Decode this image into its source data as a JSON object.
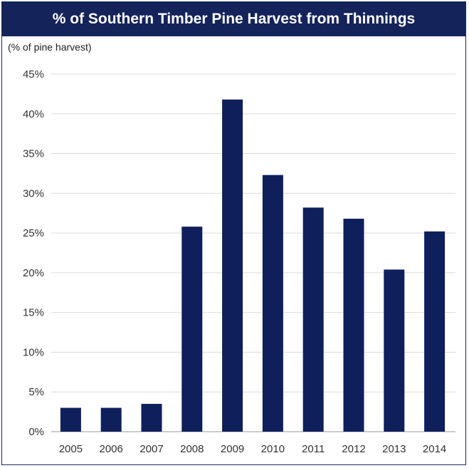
{
  "chart_data": {
    "type": "bar",
    "title": "% of Southern Timber Pine Harvest from Thinnings",
    "ylabel": "(% of pine harvest)",
    "xlabel": "",
    "categories": [
      "2005",
      "2006",
      "2007",
      "2008",
      "2009",
      "2010",
      "2011",
      "2012",
      "2013",
      "2014"
    ],
    "values": [
      3.0,
      3.0,
      3.5,
      25.8,
      41.8,
      32.3,
      28.2,
      26.8,
      20.4,
      25.2
    ],
    "ylim": [
      0,
      45
    ],
    "yticks": [
      "0%",
      "5%",
      "10%",
      "15%",
      "20%",
      "25%",
      "30%",
      "35%",
      "40%",
      "45%"
    ],
    "grid": true,
    "legend": "none",
    "bar_color": "#0f1f5c",
    "title_bg": "#14235a"
  }
}
